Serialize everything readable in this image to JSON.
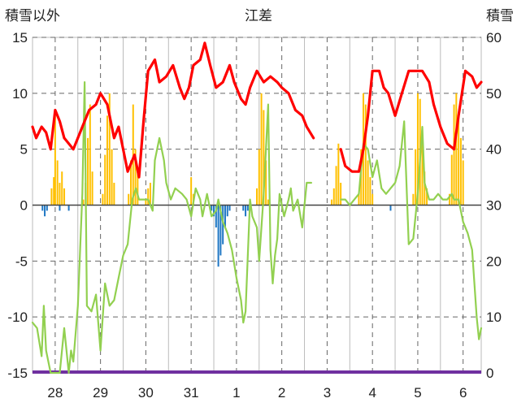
{
  "chart_data": {
    "type": "line",
    "title": "江差",
    "ylabel_left": "積雪以外",
    "ylabel_right": "積雪",
    "ylim_left": [
      -15,
      15
    ],
    "ylim_right": [
      0,
      60
    ],
    "yticks_left": [
      "15",
      "10",
      "5",
      "0",
      "-5",
      "-10",
      "-15"
    ],
    "yticks_right": [
      "60",
      "50",
      "40",
      "30",
      "20",
      "10",
      "0"
    ],
    "categories": [
      "28",
      "29",
      "30",
      "31",
      "1",
      "2",
      "3",
      "4",
      "5",
      "6"
    ],
    "x_range_days": [
      27.5,
      37.4
    ],
    "grid": true,
    "legend": "none",
    "colors": {
      "snow_depth": "#ff0000",
      "temperature": "#92d050",
      "snowfall": "#ffc000",
      "precip_negative": "#1f77c4",
      "baseline": "#7030a0",
      "grid": "#666666"
    },
    "series": [
      {
        "axis": "right",
        "color": "#ff0000",
        "segments": [
          [
            [
              27.5,
              44
            ],
            [
              27.58,
              42
            ],
            [
              27.7,
              44
            ],
            [
              27.8,
              43
            ],
            [
              27.9,
              40
            ],
            [
              28.0,
              47
            ],
            [
              28.1,
              45
            ],
            [
              28.2,
              42
            ],
            [
              28.3,
              41
            ],
            [
              28.4,
              40
            ],
            [
              28.5,
              42
            ],
            [
              28.6,
              44
            ],
            [
              28.75,
              47
            ],
            [
              28.9,
              48
            ],
            [
              29.0,
              50
            ],
            [
              29.15,
              48
            ],
            [
              29.3,
              42
            ],
            [
              29.4,
              44
            ],
            [
              29.5,
              40
            ],
            [
              29.6,
              36
            ],
            [
              29.75,
              39
            ],
            [
              29.85,
              35
            ],
            [
              29.95,
              45
            ],
            [
              30.05,
              54
            ],
            [
              30.2,
              56
            ],
            [
              30.3,
              52
            ],
            [
              30.45,
              53
            ],
            [
              30.6,
              55
            ],
            [
              30.75,
              51
            ],
            [
              30.85,
              49
            ],
            [
              30.95,
              51
            ],
            [
              31.05,
              55
            ],
            [
              31.2,
              56
            ],
            [
              31.3,
              59
            ],
            [
              31.42,
              55
            ],
            [
              31.55,
              51
            ],
            [
              31.7,
              52
            ],
            [
              31.85,
              55
            ],
            [
              31.95,
              52
            ],
            [
              32.1,
              49
            ],
            [
              32.2,
              48
            ],
            [
              32.3,
              51
            ],
            [
              32.45,
              54
            ],
            [
              32.6,
              52
            ],
            [
              32.75,
              53
            ],
            [
              32.9,
              52
            ],
            [
              33.0,
              51
            ],
            [
              33.15,
              50
            ],
            [
              33.3,
              47
            ],
            [
              33.45,
              46
            ],
            [
              33.55,
              44
            ],
            [
              33.7,
              42
            ]
          ],
          [
            [
              34.3,
              40
            ],
            [
              34.4,
              37
            ],
            [
              34.55,
              36
            ],
            [
              34.7,
              36
            ],
            [
              34.8,
              40
            ],
            [
              34.9,
              46
            ],
            [
              35.0,
              54
            ],
            [
              35.15,
              54
            ],
            [
              35.25,
              51
            ],
            [
              35.35,
              50
            ],
            [
              35.5,
              46
            ],
            [
              35.65,
              50
            ],
            [
              35.8,
              54
            ],
            [
              35.95,
              54
            ],
            [
              36.1,
              54
            ],
            [
              36.25,
              52
            ],
            [
              36.35,
              48
            ],
            [
              36.5,
              44
            ],
            [
              36.65,
              41
            ],
            [
              36.8,
              40
            ],
            [
              36.9,
              46
            ],
            [
              37.05,
              54
            ],
            [
              37.2,
              53
            ],
            [
              37.3,
              51
            ],
            [
              37.4,
              52
            ]
          ]
        ]
      },
      {
        "axis": "left",
        "color": "#92d050",
        "segments": [
          [
            [
              27.5,
              -10.5
            ],
            [
              27.6,
              -11.0
            ],
            [
              27.7,
              -13.5
            ],
            [
              27.75,
              -9.0
            ],
            [
              27.8,
              -13.0
            ],
            [
              27.9,
              -16.0
            ],
            [
              28.0,
              -15.0
            ],
            [
              28.1,
              -16.0
            ],
            [
              28.2,
              -11.0
            ],
            [
              28.3,
              -16.0
            ],
            [
              28.35,
              -13.0
            ],
            [
              28.4,
              -14.0
            ],
            [
              28.5,
              -9.0
            ],
            [
              28.6,
              1.0
            ],
            [
              28.65,
              11.0
            ],
            [
              28.7,
              -9.0
            ],
            [
              28.8,
              -9.5
            ],
            [
              28.9,
              -8.0
            ],
            [
              29.0,
              -13.0
            ],
            [
              29.1,
              -7.0
            ],
            [
              29.2,
              -9.0
            ],
            [
              29.3,
              -8.5
            ],
            [
              29.4,
              -6.5
            ],
            [
              29.5,
              -4.5
            ],
            [
              29.6,
              -3.5
            ],
            [
              29.7,
              0.5
            ],
            [
              29.78,
              1.5
            ],
            [
              29.85,
              0.5
            ],
            [
              29.95,
              0.5
            ],
            [
              30.05,
              0.5
            ],
            [
              30.15,
              -0.5
            ],
            [
              30.2,
              4.0
            ],
            [
              30.3,
              6.0
            ],
            [
              30.4,
              4.0
            ],
            [
              30.45,
              2.0
            ],
            [
              30.55,
              0.5
            ],
            [
              30.65,
              1.5
            ],
            [
              30.8,
              1.0
            ],
            [
              30.9,
              0.5
            ],
            [
              31.0,
              -1.0
            ],
            [
              31.1,
              1.5
            ],
            [
              31.2,
              0.5
            ],
            [
              31.25,
              -1.0
            ],
            [
              31.35,
              1.0
            ],
            [
              31.45,
              -1.0
            ],
            [
              31.55,
              -0.5
            ],
            [
              31.6,
              0.5
            ],
            [
              31.7,
              -1.5
            ],
            [
              31.8,
              -2.5
            ],
            [
              31.9,
              -4.0
            ],
            [
              32.0,
              -6.5
            ],
            [
              32.1,
              -8.5
            ],
            [
              32.15,
              -10.5
            ],
            [
              32.2,
              -9.5
            ],
            [
              32.3,
              0.5
            ],
            [
              32.35,
              -1.0
            ],
            [
              32.45,
              -2.0
            ],
            [
              32.5,
              -5.0
            ],
            [
              32.6,
              1.0
            ],
            [
              32.7,
              9.0
            ],
            [
              32.75,
              -4.0
            ],
            [
              32.8,
              -7.0
            ],
            [
              32.85,
              -4.5
            ],
            [
              32.9,
              -3.0
            ],
            [
              32.95,
              1.0
            ],
            [
              33.05,
              -1.0
            ],
            [
              33.15,
              0.5
            ],
            [
              33.2,
              1.5
            ],
            [
              33.25,
              -0.5
            ],
            [
              33.35,
              0.5
            ],
            [
              33.45,
              -2.0
            ],
            [
              33.55,
              2.0
            ],
            [
              33.65,
              2.0
            ]
          ],
          [
            [
              34.3,
              0.5
            ],
            [
              34.4,
              0.5
            ],
            [
              34.5,
              0.0
            ],
            [
              34.6,
              0.5
            ],
            [
              34.7,
              1.0
            ],
            [
              34.8,
              5.5
            ],
            [
              34.9,
              5.0
            ],
            [
              35.0,
              2.5
            ],
            [
              35.1,
              4.0
            ],
            [
              35.2,
              1.5
            ],
            [
              35.3,
              1.0
            ],
            [
              35.4,
              1.5
            ],
            [
              35.5,
              2.0
            ],
            [
              35.6,
              3.5
            ],
            [
              35.7,
              7.5
            ],
            [
              35.8,
              -3.5
            ],
            [
              35.9,
              -3.0
            ],
            [
              36.0,
              1.0
            ],
            [
              36.1,
              7.0
            ],
            [
              36.15,
              2.0
            ],
            [
              36.25,
              0.5
            ],
            [
              36.35,
              0.5
            ],
            [
              36.45,
              1.0
            ],
            [
              36.55,
              0.5
            ],
            [
              36.65,
              0.5
            ],
            [
              36.75,
              1.0
            ],
            [
              36.8,
              0.5
            ],
            [
              36.9,
              0.5
            ],
            [
              37.0,
              -1.5
            ],
            [
              37.1,
              -2.5
            ],
            [
              37.2,
              -4.0
            ],
            [
              37.25,
              -7.0
            ],
            [
              37.3,
              -10.0
            ],
            [
              37.35,
              -12.0
            ],
            [
              37.4,
              -11.0
            ]
          ]
        ]
      }
    ],
    "bars_left_axis": {
      "width_days": 0.025,
      "positive_color": "#ffc000",
      "negative_color": "#1f77c4",
      "points": [
        [
          27.92,
          1.5
        ],
        [
          27.97,
          2.5
        ],
        [
          28.0,
          8.0
        ],
        [
          28.05,
          4.0
        ],
        [
          28.1,
          2.0
        ],
        [
          28.15,
          3.0
        ],
        [
          28.2,
          1.5
        ],
        [
          28.62,
          0.5
        ],
        [
          28.67,
          2.0
        ],
        [
          28.72,
          6.0
        ],
        [
          28.77,
          9.0
        ],
        [
          28.82,
          3.0
        ],
        [
          29.05,
          1.0
        ],
        [
          29.1,
          4.5
        ],
        [
          29.15,
          8.0
        ],
        [
          29.2,
          10.0
        ],
        [
          29.25,
          5.0
        ],
        [
          29.3,
          2.0
        ],
        [
          29.62,
          1.0
        ],
        [
          29.67,
          4.0
        ],
        [
          29.72,
          9.0
        ],
        [
          29.77,
          5.0
        ],
        [
          29.82,
          3.0
        ],
        [
          30.0,
          0.5
        ],
        [
          30.05,
          1.5
        ],
        [
          30.1,
          2.0
        ],
        [
          31.0,
          2.5
        ],
        [
          31.05,
          1.0
        ],
        [
          32.45,
          1.5
        ],
        [
          32.5,
          5.0
        ],
        [
          32.55,
          10.0
        ],
        [
          32.6,
          8.5
        ],
        [
          32.65,
          4.0
        ],
        [
          32.7,
          0.5
        ],
        [
          34.1,
          0.5
        ],
        [
          34.15,
          1.5
        ],
        [
          34.2,
          3.5
        ],
        [
          34.25,
          5.5
        ],
        [
          34.3,
          2.0
        ],
        [
          34.7,
          1.0
        ],
        [
          34.75,
          5.0
        ],
        [
          34.8,
          10.0
        ],
        [
          34.85,
          9.0
        ],
        [
          34.9,
          4.0
        ],
        [
          34.95,
          2.5
        ],
        [
          35.0,
          1.0
        ],
        [
          35.9,
          1.0
        ],
        [
          35.95,
          5.0
        ],
        [
          36.0,
          10.0
        ],
        [
          36.05,
          9.5
        ],
        [
          36.1,
          6.0
        ],
        [
          36.15,
          3.0
        ],
        [
          36.2,
          1.5
        ],
        [
          36.7,
          1.0
        ],
        [
          36.75,
          4.5
        ],
        [
          36.8,
          9.0
        ],
        [
          36.85,
          10.0
        ],
        [
          36.9,
          8.0
        ],
        [
          36.95,
          6.0
        ],
        [
          37.0,
          4.0
        ],
        [
          27.72,
          -0.5
        ],
        [
          27.77,
          -1.0
        ],
        [
          27.82,
          -0.5
        ],
        [
          28.1,
          -0.5
        ],
        [
          28.3,
          -0.5
        ],
        [
          31.45,
          -0.5
        ],
        [
          31.5,
          -1.0
        ],
        [
          31.55,
          -2.0
        ],
        [
          31.6,
          -5.5
        ],
        [
          31.65,
          -4.5
        ],
        [
          31.7,
          -3.5
        ],
        [
          31.75,
          -2.0
        ],
        [
          31.8,
          -1.0
        ],
        [
          31.85,
          -0.5
        ],
        [
          32.15,
          -0.5
        ],
        [
          32.2,
          -1.0
        ],
        [
          32.25,
          -0.5
        ],
        [
          35.4,
          -0.5
        ]
      ]
    }
  }
}
